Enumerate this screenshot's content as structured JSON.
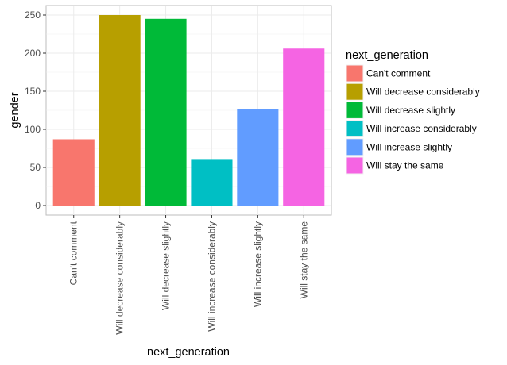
{
  "chart_data": {
    "type": "bar",
    "categories": [
      "Can't comment",
      "Will decrease considerably",
      "Will decrease slightly",
      "Will increase considerably",
      "Will increase slightly",
      "Will stay the same"
    ],
    "values": [
      87,
      250,
      245,
      60,
      127,
      206
    ],
    "colors": [
      "#F8766D",
      "#B79F00",
      "#00BA38",
      "#00BFC4",
      "#619CFF",
      "#F564E3"
    ],
    "xlabel": "next_generation",
    "ylabel": "gender",
    "ylim": [
      -12.5,
      262.5
    ],
    "yticks": [
      0,
      50,
      100,
      150,
      200,
      250
    ],
    "yminor": [
      25,
      75,
      125,
      175,
      225
    ],
    "grid": true,
    "legend": {
      "title": "next_generation",
      "position": "right",
      "entries": [
        "Can't comment",
        "Will decrease considerably",
        "Will decrease slightly",
        "Will increase considerably",
        "Will increase slightly",
        "Will stay the same"
      ]
    }
  }
}
